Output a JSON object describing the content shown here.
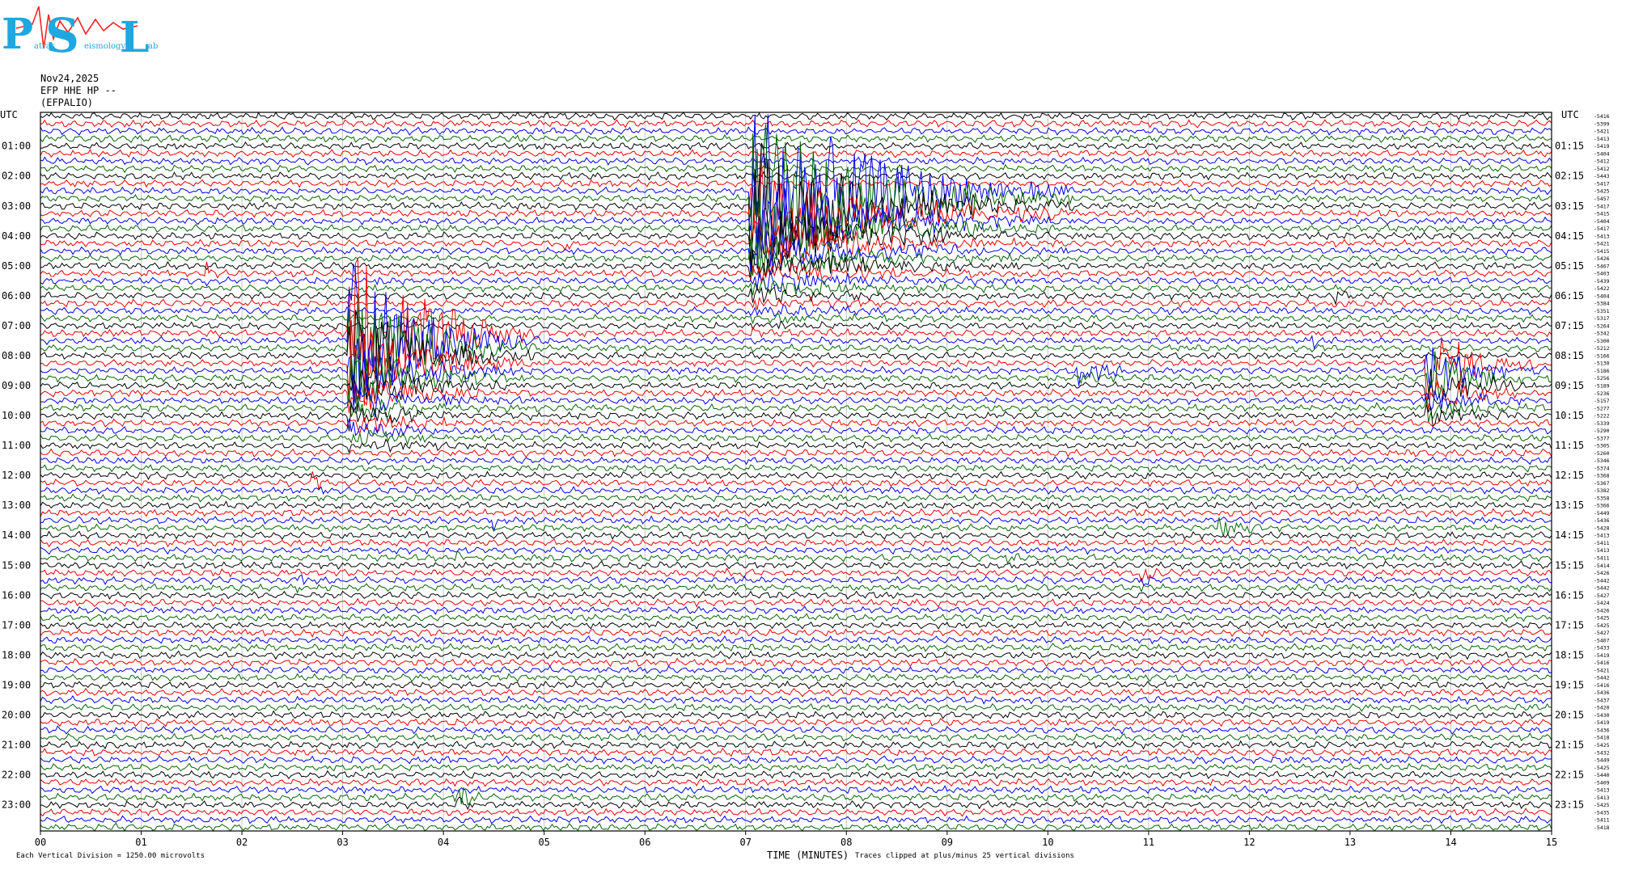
{
  "logo": {
    "letters": [
      "P",
      "S",
      "L"
    ],
    "subtitle_words": [
      "atras",
      "eismology",
      "ab"
    ],
    "color": "#1fa7e0"
  },
  "header": {
    "date": "Nov24,2025",
    "channel": "EFP HHE HP --",
    "station": "(EFPALIO)"
  },
  "footer": {
    "scale_note": "Each Vertical Division = 1250.00 microvolts",
    "xlabel": "TIME (MINUTES)",
    "clip_note": "Traces clipped at plus/minus 25 vertical divisions"
  },
  "chart_data": {
    "type": "line",
    "title": "",
    "left_axis_title": "UTC",
    "right_axis_title": "UTC",
    "x_ticks": [
      "00",
      "01",
      "02",
      "03",
      "04",
      "05",
      "06",
      "07",
      "08",
      "09",
      "10",
      "11",
      "12",
      "13",
      "14",
      "15"
    ],
    "xlim": [
      0,
      15
    ],
    "left_hour_labels": [
      "01:00",
      "02:00",
      "03:00",
      "04:00",
      "05:00",
      "06:00",
      "07:00",
      "08:00",
      "09:00",
      "10:00",
      "11:00",
      "12:00",
      "13:00",
      "14:00",
      "15:00",
      "16:00",
      "17:00",
      "18:00",
      "19:00",
      "20:00",
      "21:00",
      "22:00",
      "23:00"
    ],
    "right_hour_labels": [
      "01:15",
      "02:15",
      "03:15",
      "04:15",
      "05:15",
      "06:15",
      "07:15",
      "08:15",
      "09:15",
      "10:15",
      "11:15",
      "12:15",
      "13:15",
      "14:15",
      "15:15",
      "16:15",
      "17:15",
      "18:15",
      "19:15",
      "20:15",
      "21:15",
      "22:15",
      "23:15"
    ],
    "trace_colors": [
      "#000000",
      "#ee0000",
      "#0000ee",
      "#006600"
    ],
    "trace_count": 96,
    "row_means": [
      "-5416",
      "-5399",
      "-5421",
      "-5413",
      "-5419",
      "-5404",
      "-5412",
      "-5412",
      "-5443",
      "-5417",
      "-5425",
      "-5457",
      "-5417",
      "-5415",
      "-5404",
      "-5417",
      "-5413",
      "-5421",
      "-5415",
      "-5426",
      "-5467",
      "-5403",
      "-5439",
      "-5422",
      "-5404",
      "-5384",
      "-5351",
      "-5317",
      "-5264",
      "-5342",
      "-5300",
      "-5212",
      "-5166",
      "-5130",
      "-5186",
      "-5256",
      "-5189",
      "-5236",
      "-5157",
      "-5277",
      "-5222",
      "-5339",
      "-5290",
      "-5377",
      "-5305",
      "-5260",
      "-5346",
      "-5374",
      "-5368",
      "-5367",
      "-5382",
      "-5358",
      "-5366",
      "-5449",
      "-5436",
      "-5428",
      "-5413",
      "-5411",
      "-5413",
      "-5411",
      "-5414",
      "-5426",
      "-5442",
      "-5442",
      "-5427",
      "-5424",
      "-5426",
      "-5425",
      "-5425",
      "-5427",
      "-5407",
      "-5433",
      "-5419",
      "-5416",
      "-5421",
      "-5442",
      "-5416",
      "-5436",
      "-5437",
      "-5420",
      "-5430",
      "-5419",
      "-5436",
      "-5418",
      "-5425",
      "-5432",
      "-5449",
      "-5425",
      "-5440",
      "-5409",
      "-5413",
      "-5413",
      "-5425",
      "-5435",
      "-5411",
      "-5418"
    ],
    "events": [
      {
        "name": "large-local-event",
        "row": 29,
        "minute": 3.05,
        "amp": 25,
        "dur": 1.9,
        "rows": 16
      },
      {
        "name": "teleseism-07min",
        "row": 10,
        "minute": 7.05,
        "amp": 25,
        "dur": 3.2,
        "rows": 20
      },
      {
        "name": "regional-14min",
        "row": 33,
        "minute": 13.75,
        "amp": 10,
        "dur": 1.3,
        "rows": 8
      },
      {
        "name": "blue-burst-10-6",
        "row": 34,
        "minute": 10.3,
        "amp": 4,
        "dur": 0.9,
        "rows": 2
      },
      {
        "name": "spike-09-1",
        "row": 11,
        "minute": 9.18,
        "amp": 5,
        "dur": 0.25,
        "rows": 2
      },
      {
        "name": "spike-05-1",
        "row": 17,
        "minute": 5.15,
        "amp": 3,
        "dur": 0.2,
        "rows": 2
      },
      {
        "name": "spike-01-6",
        "row": 21,
        "minute": 1.65,
        "amp": 3,
        "dur": 0.15,
        "rows": 2
      },
      {
        "name": "spike-03-3",
        "row": 22,
        "minute": 3.3,
        "amp": 2.5,
        "dur": 0.2,
        "rows": 2
      },
      {
        "name": "spike-04-1",
        "row": 29,
        "minute": 4.15,
        "amp": 3,
        "dur": 0.15,
        "rows": 2
      },
      {
        "name": "spike-12-8",
        "row": 24,
        "minute": 12.82,
        "amp": 4,
        "dur": 0.2,
        "rows": 2
      },
      {
        "name": "spike-13-3",
        "row": 24,
        "minute": 13.3,
        "amp": 2,
        "dur": 0.15,
        "rows": 2
      },
      {
        "name": "spike-12-6",
        "row": 30,
        "minute": 12.62,
        "amp": 2.5,
        "dur": 0.2,
        "rows": 2
      },
      {
        "name": "spike-13-2b",
        "row": 39,
        "minute": 13.25,
        "amp": 2.5,
        "dur": 0.2,
        "rows": 2
      },
      {
        "name": "spike-02-7",
        "row": 49,
        "minute": 2.7,
        "amp": 3,
        "dur": 0.2,
        "rows": 2
      },
      {
        "name": "spike-04-5",
        "row": 54,
        "minute": 4.5,
        "amp": 2,
        "dur": 0.15,
        "rows": 2
      },
      {
        "name": "spike-04-1b",
        "row": 59,
        "minute": 4.1,
        "amp": 2.5,
        "dur": 0.3,
        "rows": 2
      },
      {
        "name": "spike-02-6",
        "row": 62,
        "minute": 2.55,
        "amp": 3,
        "dur": 0.2,
        "rows": 2
      },
      {
        "name": "spike-06-8",
        "row": 61,
        "minute": 6.8,
        "amp": 2.5,
        "dur": 0.3,
        "rows": 2
      },
      {
        "name": "spike-09-5",
        "row": 59,
        "minute": 9.55,
        "amp": 2.5,
        "dur": 0.25,
        "rows": 2
      },
      {
        "name": "spike-10-9",
        "row": 61,
        "minute": 10.9,
        "amp": 5,
        "dur": 0.3,
        "rows": 3
      },
      {
        "name": "spike-11-8",
        "row": 55,
        "minute": 11.7,
        "amp": 3,
        "dur": 0.5,
        "rows": 3
      },
      {
        "name": "spike-04-1c",
        "row": 91,
        "minute": 4.1,
        "amp": 4,
        "dur": 0.5,
        "rows": 2
      }
    ]
  }
}
